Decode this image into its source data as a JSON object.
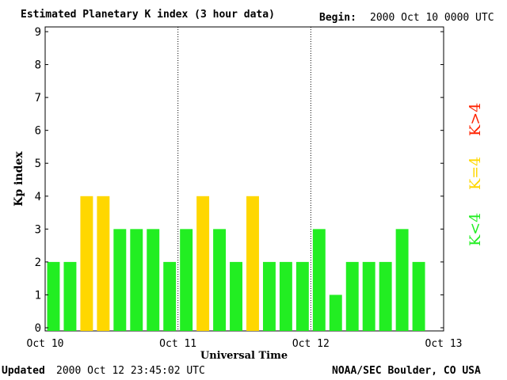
{
  "header": {
    "title": "Estimated Planetary K index (3 hour data)",
    "begin_label": "Begin:",
    "begin_value": "2000 Oct 10 0000 UTC"
  },
  "footer": {
    "updated_label": "Updated",
    "updated_value": "2000 Oct 12 23:45:02 UTC",
    "source": "NOAA/SEC Boulder, CO USA"
  },
  "legend": {
    "high": "K>4",
    "equal": "K=4",
    "low": "K<4"
  },
  "colors": {
    "low": "#22ee22",
    "equal": "#ffd700",
    "high": "#ff2200"
  },
  "chart_data": {
    "type": "bar",
    "title": "Estimated Planetary K index (3 hour data)",
    "xlabel": "Universal Time",
    "ylabel": "Kp index",
    "ylim": [
      0,
      9
    ],
    "yticks": [
      "0",
      "1",
      "2",
      "3",
      "4",
      "5",
      "6",
      "7",
      "8",
      "9"
    ],
    "xticks": [
      "Oct 10",
      "Oct 11",
      "Oct 12",
      "Oct 13"
    ],
    "bars_per_day": 8,
    "values": [
      2,
      2,
      4,
      4,
      3,
      3,
      3,
      2,
      3,
      4,
      3,
      2,
      4,
      2,
      2,
      2,
      3,
      1,
      2,
      2,
      2,
      3,
      2
    ],
    "grid": false,
    "day_separators": true
  }
}
